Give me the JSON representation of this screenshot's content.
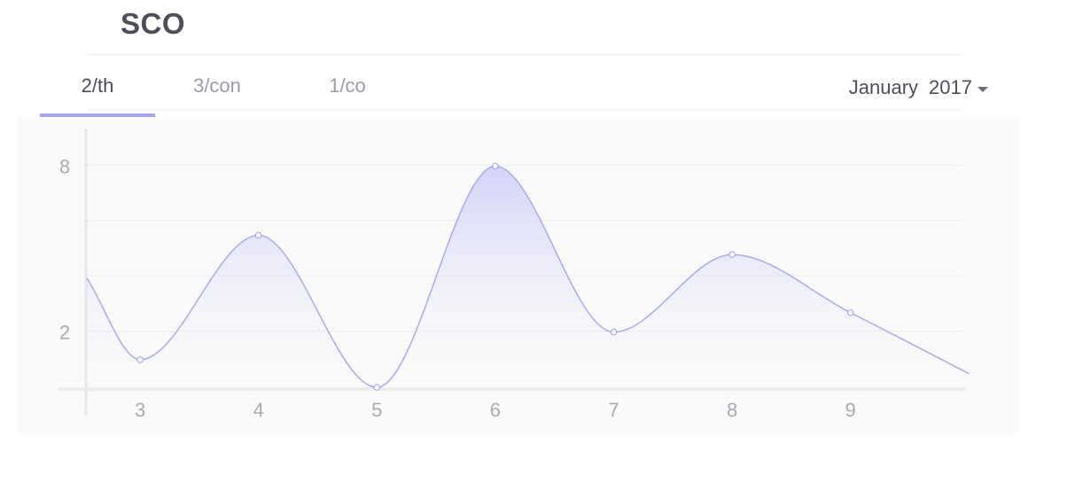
{
  "header": {
    "title": "SCO"
  },
  "tabs": [
    {
      "label": "2/th",
      "active": true
    },
    {
      "label": "3/con",
      "active": false
    },
    {
      "label": "1/co",
      "active": false
    }
  ],
  "period": {
    "month": "January",
    "year": "2017",
    "icon": "caret-down-icon"
  },
  "colors": {
    "line": "#a9a9f2",
    "fill": "#c9c9f7",
    "accent": "#a6a6f0"
  },
  "chart_data": {
    "type": "area",
    "smooth": true,
    "x": [
      3,
      4,
      5,
      6,
      7,
      8,
      9
    ],
    "values": [
      1,
      5.5,
      0,
      8,
      2,
      4.8,
      2.7
    ],
    "line_start": {
      "x": 2.55,
      "y": 3.95
    },
    "line_end": {
      "x": 10,
      "y": 0.5
    },
    "xlim": [
      2.55,
      10.2
    ],
    "ylim": [
      0,
      10
    ],
    "x_ticks": [
      "3",
      "4",
      "5",
      "6",
      "7",
      "8",
      "9"
    ],
    "y_ticks": [
      {
        "value": 2,
        "label": "2"
      },
      {
        "value": 8,
        "label": "8"
      }
    ],
    "grid_y": [
      2,
      4,
      6,
      8,
      10,
      12
    ],
    "grid": true,
    "legend": false
  }
}
